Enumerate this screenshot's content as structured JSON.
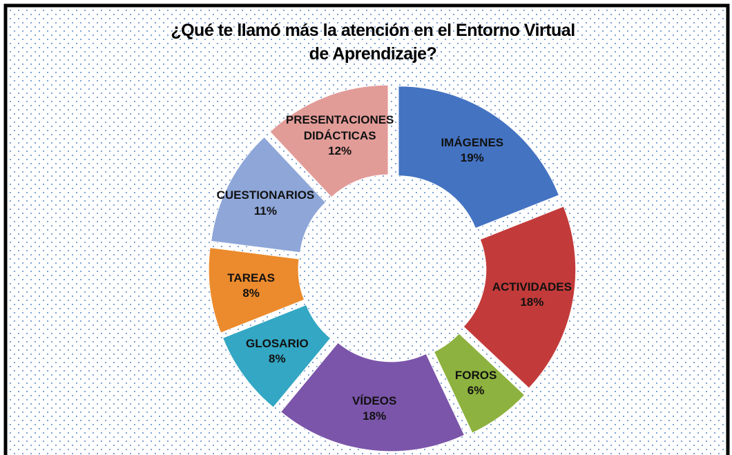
{
  "chart_data": {
    "type": "doughnut",
    "title": "¿Qué te llamó más la atención en el Entorno Virtual de Aprendizaje?",
    "categories": [
      "IMÁGENES",
      "ACTIVIDADES",
      "FOROS",
      "VÍDEOS",
      "GLOSARIO",
      "TAREAS",
      "CUESTIONARIOS",
      "PRESENTACIONES DIDÁCTICAS"
    ],
    "values": [
      19,
      18,
      6,
      18,
      8,
      8,
      11,
      12
    ],
    "value_labels": [
      "19%",
      "18%",
      "6%",
      "18%",
      "8%",
      "8%",
      "11%",
      "12%"
    ],
    "colors": [
      "#4473c2",
      "#c23b3a",
      "#8db23f",
      "#7b55aa",
      "#33a7c3",
      "#ec8b2d",
      "#8ea6d8",
      "#e29c98"
    ]
  }
}
